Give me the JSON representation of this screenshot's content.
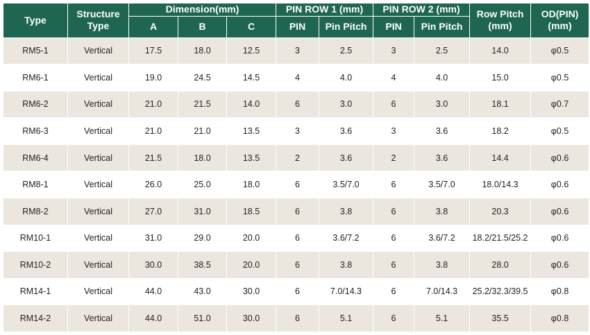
{
  "header": {
    "type": "Type",
    "structure_type": "Structure\nType",
    "dimension": "Dimension(mm)",
    "pin_row_1": "PIN ROW 1 (mm)",
    "pin_row_2": "PIN ROW 2 (mm)",
    "row_pitch": "Row Pitch\n(mm)",
    "od_pin": "OD(PIN)\n(mm)",
    "sub": {
      "a": "A",
      "b": "B",
      "c": "C",
      "pin1": "PIN",
      "pin_pitch1": "Pin Pitch",
      "pin2": "PIN",
      "pin_pitch2": "Pin Pitch"
    }
  },
  "rows": [
    {
      "type": "RM5-1",
      "structure": "Vertical",
      "a": "17.5",
      "b": "18.0",
      "c": "12.5",
      "pin1": "3",
      "pitch1": "2.5",
      "pin2": "3",
      "pitch2": "2.5",
      "row_pitch": "14.0",
      "od": "φ0.5"
    },
    {
      "type": "RM6-1",
      "structure": "Vertical",
      "a": "19.0",
      "b": "24.5",
      "c": "14.5",
      "pin1": "4",
      "pitch1": "4.0",
      "pin2": "4",
      "pitch2": "4.0",
      "row_pitch": "15.0",
      "od": "φ0.5"
    },
    {
      "type": "RM6-2",
      "structure": "Vertical",
      "a": "21.0",
      "b": "21.5",
      "c": "14.0",
      "pin1": "6",
      "pitch1": "3.0",
      "pin2": "6",
      "pitch2": "3.0",
      "row_pitch": "18.1",
      "od": "φ0.7"
    },
    {
      "type": "RM6-3",
      "structure": "Vertical",
      "a": "21.0",
      "b": "21.0",
      "c": "13.5",
      "pin1": "3",
      "pitch1": "3.6",
      "pin2": "3",
      "pitch2": "3.6",
      "row_pitch": "18.2",
      "od": "φ0.5"
    },
    {
      "type": "RM6-4",
      "structure": "Vertical",
      "a": "21.5",
      "b": "18.0",
      "c": "13.5",
      "pin1": "2",
      "pitch1": "3.6",
      "pin2": "2",
      "pitch2": "3.6",
      "row_pitch": "14.4",
      "od": "φ0.6"
    },
    {
      "type": "RM8-1",
      "structure": "Vertical",
      "a": "26.0",
      "b": "25.0",
      "c": "18.0",
      "pin1": "6",
      "pitch1": "3.5/7.0",
      "pin2": "6",
      "pitch2": "3.5/7.0",
      "row_pitch": "18.0/14.3",
      "od": "φ0.6"
    },
    {
      "type": "RM8-2",
      "structure": "Vertical",
      "a": "27.0",
      "b": "31.0",
      "c": "18.5",
      "pin1": "6",
      "pitch1": "3.8",
      "pin2": "6",
      "pitch2": "3.8",
      "row_pitch": "20.3",
      "od": "φ0.6"
    },
    {
      "type": "RM10-1",
      "structure": "Vertical",
      "a": "31.0",
      "b": "29.0",
      "c": "20.0",
      "pin1": "6",
      "pitch1": "3.6/7.2",
      "pin2": "6",
      "pitch2": "3.6/7.2",
      "row_pitch": "18.2/21.5/25.2",
      "od": "φ0.6"
    },
    {
      "type": "RM10-2",
      "structure": "Vertical",
      "a": "30.0",
      "b": "38.5",
      "c": "20.0",
      "pin1": "6",
      "pitch1": "3.8",
      "pin2": "6",
      "pitch2": "3.8",
      "row_pitch": "28.0",
      "od": "φ0.6"
    },
    {
      "type": "RM14-1",
      "structure": "Vertical",
      "a": "44.0",
      "b": "43.0",
      "c": "30.0",
      "pin1": "6",
      "pitch1": "7.0/14.3",
      "pin2": "6",
      "pitch2": "7.0/14.3",
      "row_pitch": "25.2/32.3/39.5",
      "od": "φ0.8"
    },
    {
      "type": "RM14-2",
      "structure": "Vertical",
      "a": "44.0",
      "b": "51.0",
      "c": "30.0",
      "pin1": "6",
      "pitch1": "5.1",
      "pin2": "6",
      "pitch2": "5.1",
      "row_pitch": "35.5",
      "od": "φ0.8"
    }
  ],
  "colors": {
    "header_bg": "#1e6652",
    "row_alt_bg": "#ebe7de",
    "row_bg": "#ffffff"
  }
}
